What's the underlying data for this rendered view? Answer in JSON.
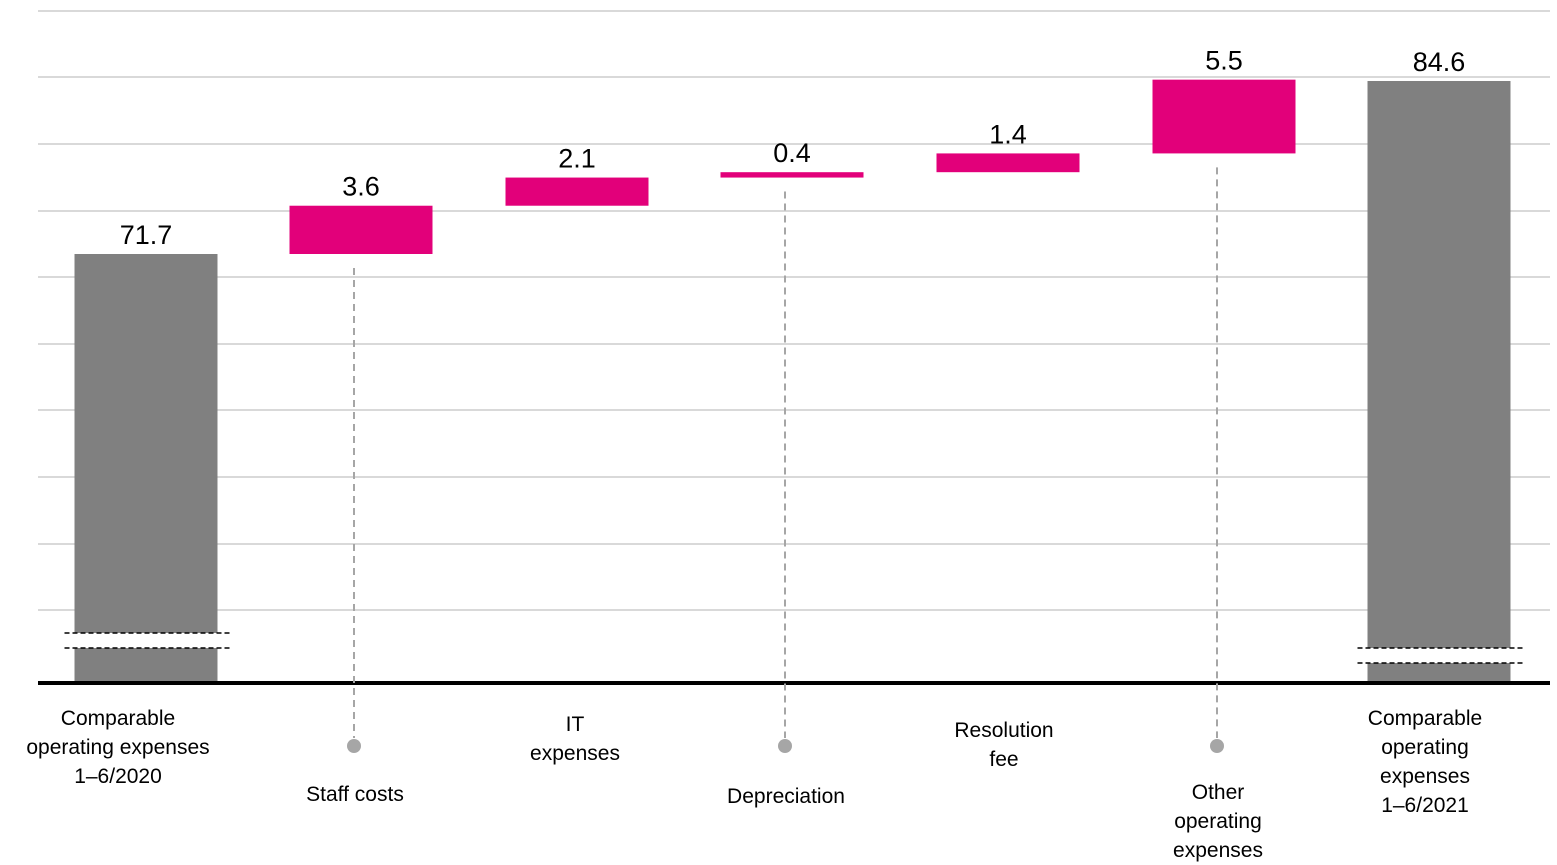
{
  "chart_data": {
    "type": "bar",
    "subtype": "waterfall",
    "categories": [
      "Comparable\noperating expenses\n1–6/2020",
      "Staff costs",
      "IT\nexpenses",
      "Depreciation",
      "Resolution\nfee",
      "Other\noperating\nexpenses",
      "Comparable\noperating expenses\n1–6/2021"
    ],
    "values": [
      71.7,
      3.6,
      2.1,
      0.4,
      1.4,
      5.5,
      84.6
    ],
    "value_labels": [
      "71.7",
      "3.6",
      "2.1",
      "0.4",
      "1.4",
      "5.5",
      "84.6"
    ],
    "kinds": [
      "total",
      "increase",
      "increase",
      "increase",
      "increase",
      "increase",
      "total"
    ],
    "title": "",
    "xlabel": "",
    "ylabel": "",
    "grid": true,
    "axis_break": true,
    "colors": {
      "total": "#808080",
      "increase": "#E2007A",
      "grid": "#d9d9d9",
      "axis": "#000000",
      "leader": "#a6a6a6"
    }
  }
}
